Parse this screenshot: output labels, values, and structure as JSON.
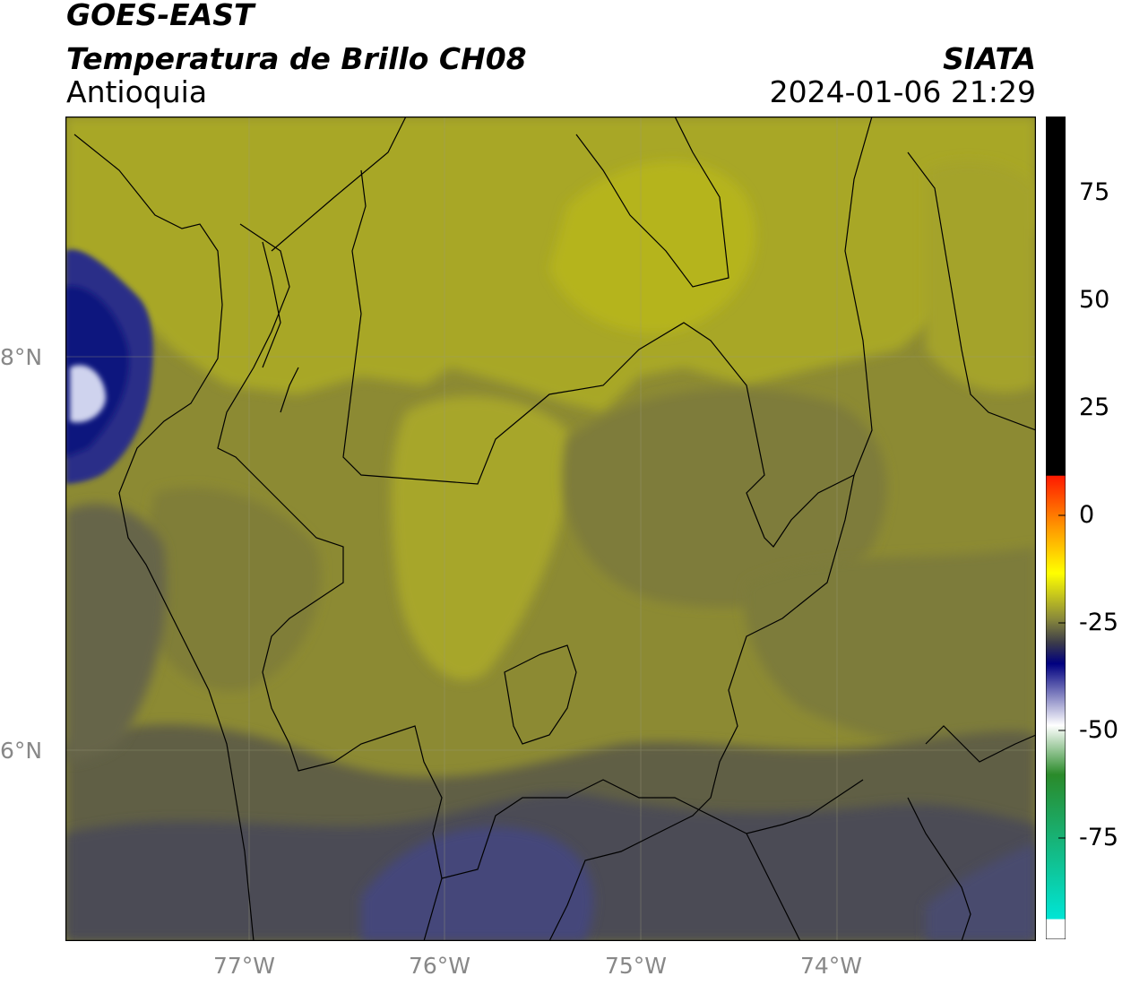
{
  "header": {
    "satellite": "GOES-EAST",
    "product": "Temperatura de Brillo CH08",
    "region": "Antioquia",
    "source": "SIATA",
    "datetime": "2024-01-06 21:29"
  },
  "map": {
    "lon_ticks": [
      "77°W",
      "76°W",
      "75°W",
      "74°W"
    ],
    "lat_ticks": [
      "8°N",
      "6°N"
    ],
    "colors": {
      "olive_light": "#b3b21f",
      "olive": "#9d9c2d",
      "olive_dark": "#7c7a3a",
      "grey_olive": "#5d5b46",
      "slate": "#48485a",
      "blue_grey": "#44466e",
      "navy": "#0c137e",
      "pale": "#cfd3ee",
      "boundary": "#000000"
    }
  },
  "colorbar": {
    "ticks": [
      "75",
      "50",
      "25",
      "0",
      "-25",
      "-50",
      "-75"
    ],
    "colors": {
      "black": "#000000",
      "red": "#ff1a00",
      "orange": "#ff9900",
      "yellow": "#ffff00",
      "olive": "#8a8a3a",
      "navy": "#000080",
      "white": "#ffffff",
      "green": "#2a8a2a",
      "cyan": "#00e5d5"
    }
  }
}
